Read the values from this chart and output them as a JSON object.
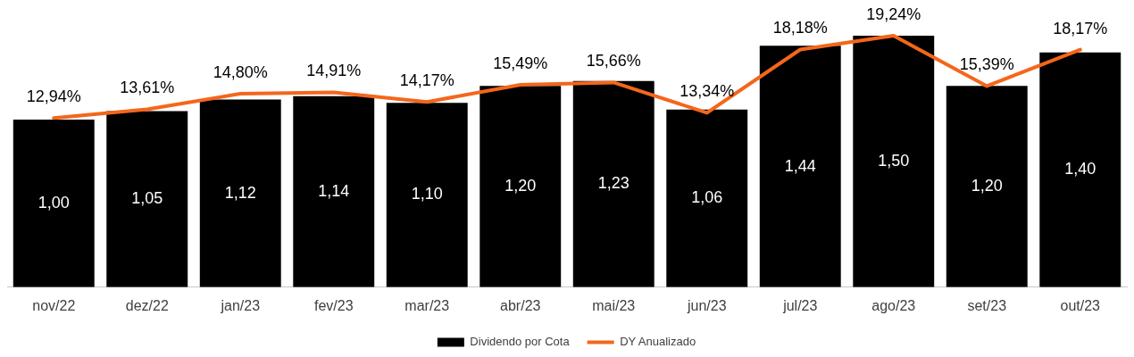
{
  "chart_data": {
    "type": "bar",
    "categories": [
      "nov/22",
      "dez/22",
      "jan/23",
      "fev/23",
      "mar/23",
      "abr/23",
      "mai/23",
      "jun/23",
      "jul/23",
      "ago/23",
      "set/23",
      "out/23"
    ],
    "series": [
      {
        "name": "Dividendo por Cota",
        "color": "#000000",
        "values": [
          1.0,
          1.05,
          1.12,
          1.14,
          1.1,
          1.2,
          1.23,
          1.06,
          1.44,
          1.5,
          1.2,
          1.4
        ],
        "value_labels": [
          "1,00",
          "1,05",
          "1,12",
          "1,14",
          "1,10",
          "1,20",
          "1,23",
          "1,06",
          "1,44",
          "1,50",
          "1,20",
          "1,40"
        ]
      },
      {
        "name": "DY Anualizado",
        "type": "line",
        "axis": "y2",
        "color": "#f4661b",
        "values": [
          12.94,
          13.61,
          14.8,
          14.91,
          14.17,
          15.49,
          15.66,
          13.34,
          18.18,
          19.24,
          15.39,
          18.17
        ],
        "value_labels": [
          "12,94%",
          "13,61%",
          "14,80%",
          "14,91%",
          "14,17%",
          "15,49%",
          "15,66%",
          "13,34%",
          "18,18%",
          "19,24%",
          "15,39%",
          "18,17%"
        ]
      }
    ],
    "tick_labels": "x",
    "grid": false,
    "legend": "bottom",
    "marker": "none",
    "line_style": "solid"
  }
}
